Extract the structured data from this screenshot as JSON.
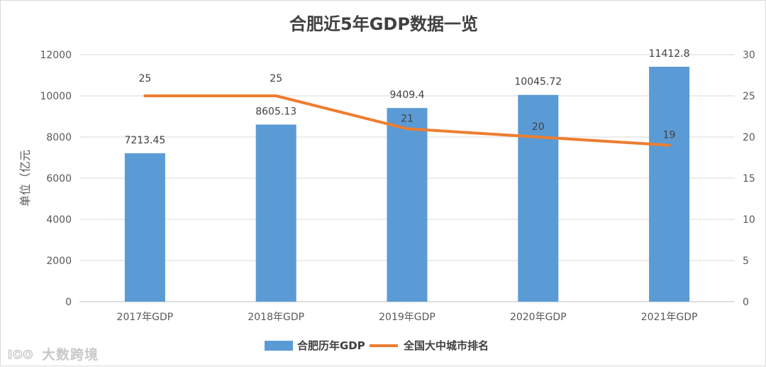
{
  "chart_data": {
    "type": "bar",
    "title": "合肥近5年GDP数据一览",
    "categories": [
      "2017年GDP",
      "2018年GDP",
      "2019年GDP",
      "2020年GDP",
      "2021年GDP"
    ],
    "series": [
      {
        "name": "合肥历年GDP",
        "type": "bar",
        "axis": "left",
        "color": "#5b9bd5",
        "values": [
          7213.45,
          8605.13,
          9409.4,
          10045.72,
          11412.8
        ],
        "labels": [
          "7213.45",
          "8605.13",
          "9409.4",
          "10045.72",
          "11412.8"
        ]
      },
      {
        "name": "全国大中城市排名",
        "type": "line",
        "axis": "right",
        "color": "#ed7d31",
        "values": [
          25,
          25,
          21,
          20,
          19
        ],
        "labels": [
          "25",
          "25",
          "21",
          "20",
          "19"
        ]
      }
    ],
    "ylabel": "单位（亿元",
    "ylim": [
      0,
      12000
    ],
    "yticks": [
      "0",
      "2000",
      "4000",
      "6000",
      "8000",
      "10000",
      "12000"
    ],
    "y2lim": [
      0,
      30
    ],
    "y2ticks": [
      "0",
      "5",
      "10",
      "15",
      "20",
      "25",
      "30"
    ],
    "grid": true,
    "legend": "bottom-center"
  },
  "watermark": {
    "text": "大数跨境",
    "logo_text": "IOO"
  }
}
